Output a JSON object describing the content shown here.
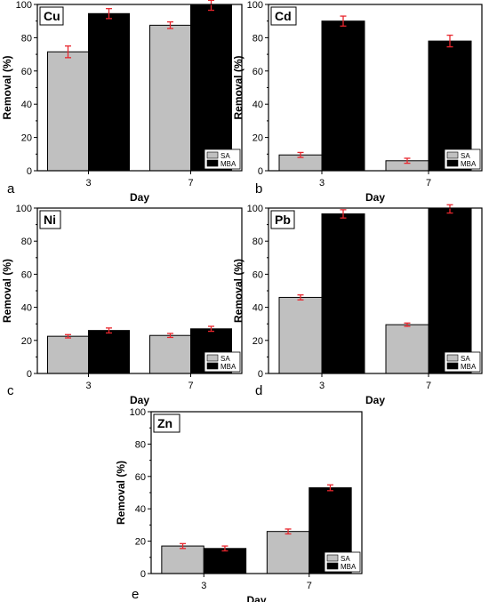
{
  "legend": {
    "sa_label": "SA",
    "mba_label": "MBA"
  },
  "colors": {
    "sa": "#c0c0c0",
    "mba": "#000000",
    "error": "#e8262d",
    "axis": "#000000"
  },
  "chart_data": [
    {
      "type": "bar",
      "panel": "a",
      "title": "Cu",
      "categories": [
        "3",
        "7"
      ],
      "series": [
        {
          "name": "SA",
          "values": [
            71.5,
            87.5
          ],
          "errors": [
            3.5,
            2.0
          ]
        },
        {
          "name": "MBA",
          "values": [
            94.5,
            99.5
          ],
          "errors": [
            3.0,
            3.0
          ]
        }
      ],
      "xlabel": "Day",
      "ylabel": "Removal (%)",
      "ylim": [
        0,
        100
      ],
      "yticks": [
        "0",
        "20",
        "40",
        "60",
        "80",
        "100"
      ],
      "grid": false,
      "legend_position": "bottom-right"
    },
    {
      "type": "bar",
      "panel": "b",
      "title": "Cd",
      "categories": [
        "3",
        "7"
      ],
      "series": [
        {
          "name": "SA",
          "values": [
            9.5,
            6.0
          ],
          "errors": [
            1.5,
            1.5
          ]
        },
        {
          "name": "MBA",
          "values": [
            90.0,
            78.0
          ],
          "errors": [
            3.0,
            3.5
          ]
        }
      ],
      "xlabel": "Day",
      "ylabel": "Removal (%)",
      "ylim": [
        0,
        100
      ],
      "yticks": [
        "0",
        "20",
        "40",
        "60",
        "80",
        "100"
      ],
      "grid": false,
      "legend_position": "bottom-right"
    },
    {
      "type": "bar",
      "panel": "c",
      "title": "Ni",
      "categories": [
        "3",
        "7"
      ],
      "series": [
        {
          "name": "SA",
          "values": [
            22.5,
            23.0
          ],
          "errors": [
            1.0,
            1.2
          ]
        },
        {
          "name": "MBA",
          "values": [
            26.0,
            27.0
          ],
          "errors": [
            1.5,
            1.5
          ]
        }
      ],
      "xlabel": "Day",
      "ylabel": "Removal (%)",
      "ylim": [
        0,
        100
      ],
      "yticks": [
        "0",
        "20",
        "40",
        "60",
        "80",
        "100"
      ],
      "grid": false,
      "legend_position": "bottom-right"
    },
    {
      "type": "bar",
      "panel": "d",
      "title": "Pb",
      "categories": [
        "3",
        "7"
      ],
      "series": [
        {
          "name": "SA",
          "values": [
            46.0,
            29.5
          ],
          "errors": [
            1.5,
            1.0
          ]
        },
        {
          "name": "MBA",
          "values": [
            96.5,
            99.5
          ],
          "errors": [
            2.5,
            2.5
          ]
        }
      ],
      "xlabel": "Day",
      "ylabel": "Removal (%)",
      "ylim": [
        0,
        100
      ],
      "yticks": [
        "0",
        "20",
        "40",
        "60",
        "80",
        "100"
      ],
      "grid": false,
      "legend_position": "bottom-right"
    },
    {
      "type": "bar",
      "panel": "e",
      "title": "Zn",
      "categories": [
        "3",
        "7"
      ],
      "series": [
        {
          "name": "SA",
          "values": [
            17.0,
            26.0
          ],
          "errors": [
            1.5,
            1.5
          ]
        },
        {
          "name": "MBA",
          "values": [
            15.5,
            53.0
          ],
          "errors": [
            1.5,
            1.8
          ]
        }
      ],
      "xlabel": "Day",
      "ylabel": "Removal (%)",
      "ylim": [
        0,
        100
      ],
      "yticks": [
        "0",
        "20",
        "40",
        "60",
        "80",
        "100"
      ],
      "grid": false,
      "legend_position": "bottom-right"
    }
  ]
}
